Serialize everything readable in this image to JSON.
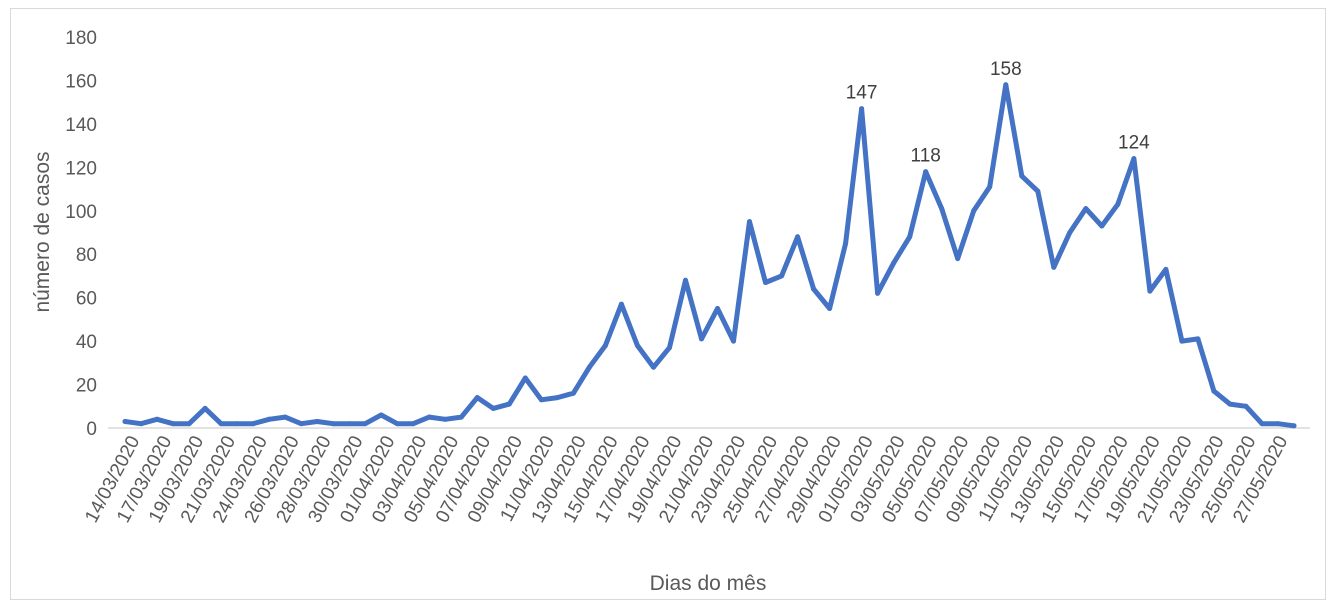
{
  "chart_data": {
    "type": "line",
    "title": "",
    "xlabel": "Dias do mês",
    "ylabel": "número de casos",
    "ylim": [
      0,
      180
    ],
    "yticks": [
      0,
      20,
      40,
      60,
      80,
      100,
      120,
      140,
      160,
      180
    ],
    "grid": false,
    "legend": "none",
    "line_color": "#4472C4",
    "axis_color": "#d9d9d9",
    "tick_labels": [
      "14/03/2020",
      "17/03/2020",
      "19/03/2020",
      "21/03/2020",
      "24/03/2020",
      "26/03/2020",
      "28/03/2020",
      "30/03/2020",
      "01/04/2020",
      "03/04/2020",
      "05/04/2020",
      "07/04/2020",
      "09/04/2020",
      "11/04/2020",
      "13/04/2020",
      "15/04/2020",
      "17/04/2020",
      "19/04/2020",
      "21/04/2020",
      "23/04/2020",
      "25/04/2020",
      "27/04/2020",
      "29/04/2020",
      "01/05/2020",
      "03/05/2020",
      "05/05/2020",
      "07/05/2020",
      "09/05/2020",
      "11/05/2020",
      "13/05/2020",
      "15/05/2020",
      "17/05/2020",
      "19/05/2020",
      "21/05/2020",
      "23/05/2020",
      "25/05/2020",
      "27/05/2020"
    ],
    "series": [
      {
        "values": [
          3,
          2,
          4,
          2,
          2,
          9,
          2,
          2,
          2,
          4,
          5,
          2,
          3,
          2,
          2,
          2,
          6,
          2,
          2,
          5,
          4,
          5,
          14,
          9,
          11,
          23,
          13,
          14,
          16,
          28,
          38,
          57,
          38,
          28,
          37,
          68,
          41,
          55,
          40,
          95,
          67,
          70,
          88,
          64,
          55,
          85,
          147,
          62,
          76,
          88,
          118,
          101,
          78,
          100,
          111,
          158,
          116,
          109,
          74,
          90,
          101,
          93,
          103,
          124,
          63,
          73,
          40,
          41,
          17,
          11,
          10,
          2,
          2,
          1
        ]
      }
    ],
    "annotations": [
      {
        "index": 46,
        "label": "147"
      },
      {
        "index": 50,
        "label": "118"
      },
      {
        "index": 55,
        "label": "158"
      },
      {
        "index": 63,
        "label": "124"
      }
    ]
  }
}
